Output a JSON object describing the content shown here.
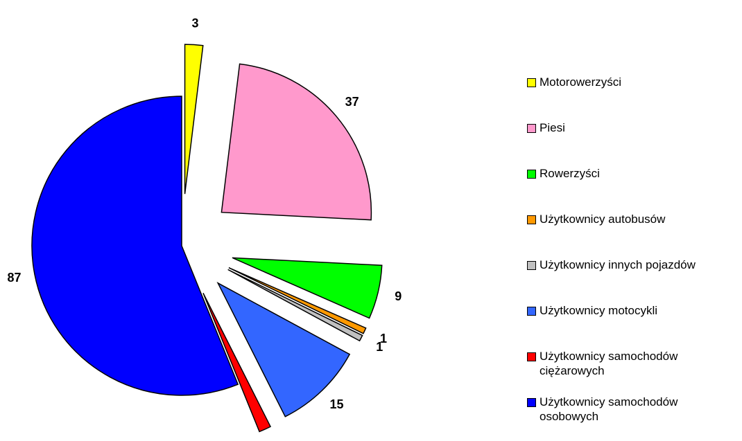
{
  "chart_data": {
    "type": "pie",
    "series": [
      {
        "name": "Motorowerzyści",
        "color": "#ffff00",
        "values": [
          3
        ]
      },
      {
        "name": "Piesi",
        "color": "#ff99cc",
        "values": [
          37
        ]
      },
      {
        "name": "Rowerzyści",
        "color": "#00ff00",
        "values": [
          9
        ]
      },
      {
        "name": "Użytkownicy autobusów",
        "color": "#ff9900",
        "values": [
          1
        ]
      },
      {
        "name": "Użytkownicy innych pojazdów",
        "color": "#c0c0c0",
        "values": [
          1
        ]
      },
      {
        "name": "Użytkownicy motocykli",
        "color": "#3366ff",
        "values": [
          15
        ]
      },
      {
        "name": "Użytkownicy samochodów ciężarowych",
        "color": "#ff0000",
        "values": [
          2
        ]
      },
      {
        "name": "Użytkownicy samochodów osobowych",
        "color": "#0000ff",
        "values": [
          87
        ]
      }
    ]
  }
}
